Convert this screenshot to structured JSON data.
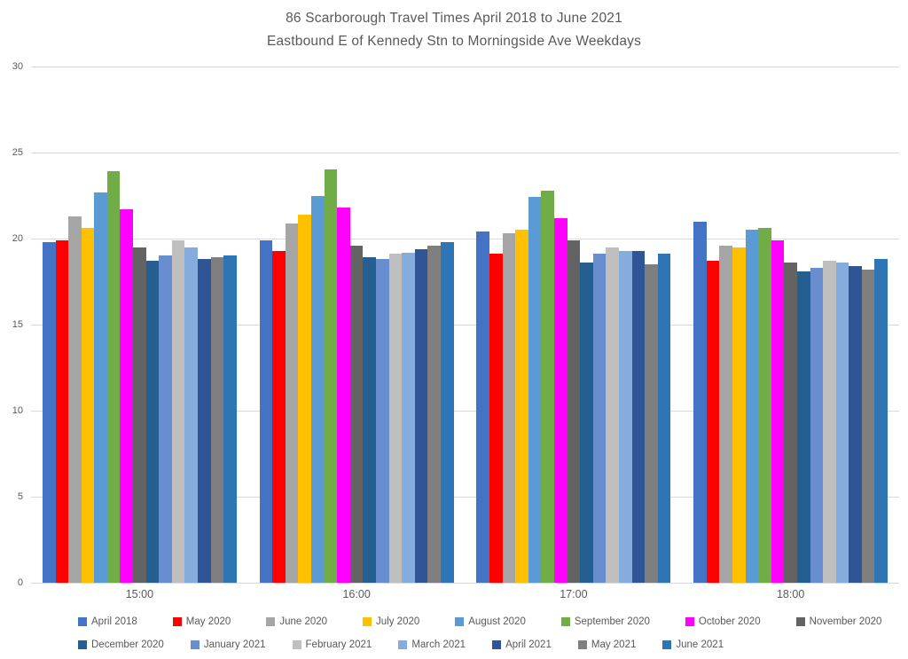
{
  "chart_data": {
    "type": "bar",
    "title_line1": "86 Scarborough Travel Times April 2018 to June 2021",
    "title_line2": "Eastbound E of Kennedy Stn to Morningside Ave Weekdays",
    "categories": [
      "15:00",
      "16:00",
      "17:00",
      "18:00"
    ],
    "series": [
      {
        "name": "April 2018",
        "color": "#4472C4",
        "values": [
          19.8,
          19.9,
          20.4,
          21.0
        ]
      },
      {
        "name": "May 2020",
        "color": "#FF0000",
        "values": [
          19.9,
          19.3,
          19.1,
          18.7
        ]
      },
      {
        "name": "June 2020",
        "color": "#A5A5A5",
        "values": [
          21.3,
          20.9,
          20.3,
          19.6
        ]
      },
      {
        "name": "July 2020",
        "color": "#FFC000",
        "values": [
          20.6,
          21.4,
          20.5,
          19.5
        ]
      },
      {
        "name": "August 2020",
        "color": "#5B9BD5",
        "values": [
          22.7,
          22.5,
          22.4,
          20.5
        ]
      },
      {
        "name": "September 2020",
        "color": "#70AD47",
        "values": [
          23.9,
          24.0,
          22.8,
          20.6
        ]
      },
      {
        "name": "October 2020",
        "color": "#FF00FF",
        "values": [
          21.7,
          21.8,
          21.2,
          19.9
        ]
      },
      {
        "name": "November 2020",
        "color": "#636363",
        "values": [
          19.5,
          19.6,
          19.9,
          18.6
        ]
      },
      {
        "name": "December 2020",
        "color": "#255E91",
        "values": [
          18.7,
          18.9,
          18.6,
          18.1
        ]
      },
      {
        "name": "January 2021",
        "color": "#698ED0",
        "values": [
          19.0,
          18.8,
          19.1,
          18.3
        ]
      },
      {
        "name": "February 2021",
        "color": "#BFBFBF",
        "values": [
          19.9,
          19.1,
          19.5,
          18.7
        ]
      },
      {
        "name": "March 2021",
        "color": "#84ACDC",
        "values": [
          19.5,
          19.2,
          19.3,
          18.6
        ]
      },
      {
        "name": "April 2021",
        "color": "#2F5597",
        "values": [
          18.8,
          19.4,
          19.3,
          18.4
        ]
      },
      {
        "name": "May 2021",
        "color": "#7F7F7F",
        "values": [
          18.9,
          19.6,
          18.5,
          18.2
        ]
      },
      {
        "name": "June 2021",
        "color": "#2E75B6",
        "values": [
          19.0,
          19.8,
          19.1,
          18.8
        ]
      }
    ],
    "ylim": [
      0,
      30
    ],
    "yticks": [
      30,
      25,
      20,
      15,
      10,
      5,
      0
    ],
    "grid": true,
    "gridline_color": "#D9D9D9",
    "text_color": "#595959",
    "legend_position": "bottom",
    "legend_rows": [
      [
        "April 2018",
        "May 2020",
        "June 2020",
        "July 2020",
        "August 2020",
        "September 2020",
        "October 2020",
        "November 2020"
      ],
      [
        "December 2020",
        "January 2021",
        "February 2021",
        "March 2021",
        "April 2021",
        "May 2021",
        "June 2021"
      ]
    ]
  }
}
